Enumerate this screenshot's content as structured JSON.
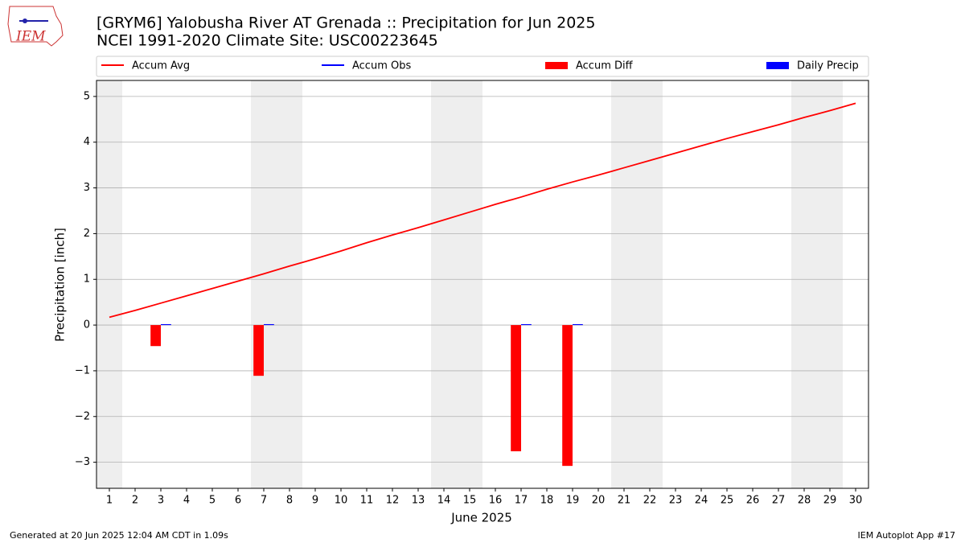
{
  "logo_text": "IEM",
  "footer_left": "Generated at 20 Jun 2025 12:04 AM CDT in 1.09s",
  "footer_right": "IEM Autoplot App #17",
  "chart_data": {
    "type": "bar",
    "title": "[GRYM6] Yalobusha River  AT Grenada :: Precipitation for Jun 2025",
    "subtitle": "NCEI 1991-2020 Climate Site: USC00223645",
    "xlabel": "June 2025",
    "ylabel": "Precipitation [inch]",
    "x": [
      1,
      2,
      3,
      4,
      5,
      6,
      7,
      8,
      9,
      10,
      11,
      12,
      13,
      14,
      15,
      16,
      17,
      18,
      19,
      20,
      21,
      22,
      23,
      24,
      25,
      26,
      27,
      28,
      29,
      30
    ],
    "xlim": [
      0.5,
      30.5
    ],
    "xticks": [
      1,
      2,
      3,
      4,
      5,
      6,
      7,
      8,
      9,
      10,
      11,
      12,
      13,
      14,
      15,
      16,
      17,
      18,
      19,
      20,
      21,
      22,
      23,
      24,
      25,
      26,
      27,
      28,
      29,
      30
    ],
    "ylim": [
      -3.57,
      5.35
    ],
    "yticks": [
      {
        "value": -3,
        "label": "−3"
      },
      {
        "value": -2,
        "label": "−2"
      },
      {
        "value": -1,
        "label": "−1"
      },
      0,
      1,
      2,
      3,
      4,
      5
    ],
    "grid": true,
    "shaded_days": [
      1,
      7,
      8,
      14,
      15,
      21,
      22,
      28,
      29
    ],
    "series": [
      {
        "name": "Accum Avg",
        "kind": "line",
        "color": "#ff0000",
        "values": [
          0.17,
          0.32,
          0.48,
          0.64,
          0.8,
          0.96,
          1.12,
          1.29,
          1.45,
          1.62,
          1.8,
          1.97,
          2.13,
          2.3,
          2.47,
          2.64,
          2.8,
          2.97,
          3.13,
          3.28,
          3.44,
          3.6,
          3.76,
          3.92,
          4.08,
          4.23,
          4.38,
          4.54,
          4.69,
          4.85
        ]
      },
      {
        "name": "Accum Obs",
        "kind": "line",
        "color": "#0000ff",
        "values": [
          null,
          null,
          null,
          null,
          null,
          null,
          null,
          null,
          null,
          null,
          null,
          null,
          null,
          null,
          null,
          null,
          null,
          null,
          null,
          null,
          null,
          null,
          null,
          null,
          null,
          null,
          null,
          null,
          null,
          null
        ]
      },
      {
        "name": "Accum Diff",
        "kind": "bar",
        "color": "#ff0000",
        "values": [
          null,
          null,
          -0.46,
          null,
          null,
          null,
          -1.11,
          null,
          null,
          null,
          null,
          null,
          null,
          null,
          null,
          null,
          -2.76,
          null,
          -3.08,
          null,
          null,
          null,
          null,
          null,
          null,
          null,
          null,
          null,
          null,
          null
        ]
      },
      {
        "name": "Daily Precip",
        "kind": "bar",
        "color": "#0000ff",
        "values": [
          null,
          null,
          0.02,
          null,
          null,
          null,
          0.02,
          null,
          null,
          null,
          null,
          null,
          null,
          null,
          null,
          null,
          0.02,
          null,
          0.02,
          null,
          null,
          null,
          null,
          null,
          null,
          null,
          null,
          null,
          null,
          null
        ]
      }
    ]
  }
}
